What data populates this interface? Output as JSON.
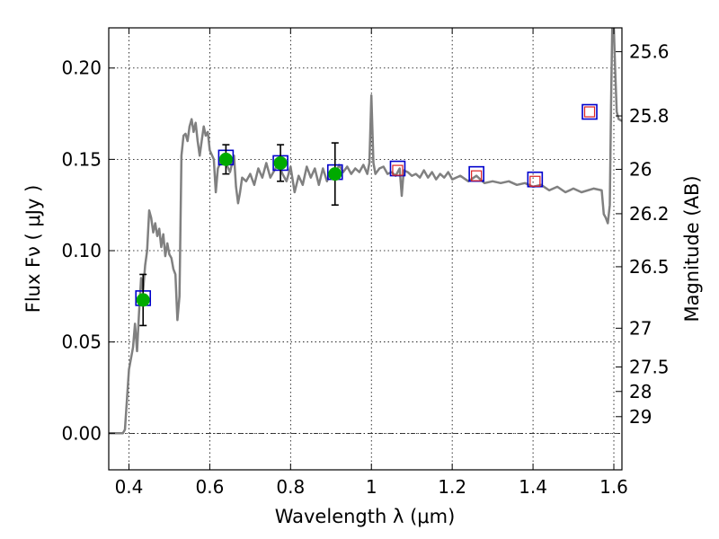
{
  "chart_data": {
    "type": "scatter",
    "title": "",
    "xlabel": "Wavelength  λ (μm)",
    "ylabel": "Flux  Fν  ( μJy )",
    "right_ylabel": "Magnitude (AB)",
    "xlim": [
      0.35,
      1.62
    ],
    "ylim": [
      -0.02,
      0.222
    ],
    "x_ticks": [
      {
        "v": 0.4,
        "label": "0.4"
      },
      {
        "v": 0.6,
        "label": "0.6"
      },
      {
        "v": 0.8,
        "label": "0.8"
      },
      {
        "v": 1.0,
        "label": "1"
      },
      {
        "v": 1.2,
        "label": "1.2"
      },
      {
        "v": 1.4,
        "label": "1.4"
      },
      {
        "v": 1.6,
        "label": "1.6"
      }
    ],
    "y_ticks": [
      {
        "v": 0.0,
        "label": "0.00"
      },
      {
        "v": 0.05,
        "label": "0.05"
      },
      {
        "v": 0.1,
        "label": "0.10"
      },
      {
        "v": 0.15,
        "label": "0.15"
      },
      {
        "v": 0.2,
        "label": "0.20"
      }
    ],
    "mag_ticks": [
      {
        "v": 25.6,
        "label": "25.6"
      },
      {
        "v": 25.8,
        "label": "25.8"
      },
      {
        "v": 26,
        "label": "26"
      },
      {
        "v": 26.2,
        "label": "26.2"
      },
      {
        "v": 26.5,
        "label": "26.5"
      },
      {
        "v": 27,
        "label": "27"
      },
      {
        "v": 27.5,
        "label": "27.5"
      },
      {
        "v": 28,
        "label": "28"
      },
      {
        "v": 29,
        "label": "29"
      }
    ],
    "grid": true,
    "zero_line": true,
    "colors": {
      "model": "#808080",
      "observed": "#00aa00",
      "model_band_outer": "#0000cc",
      "upper_limit_inner": "#dd2222",
      "errorbar": "#000000"
    },
    "series": [
      {
        "kind": "model_spectrum",
        "points": [
          [
            0.35,
            0.0
          ],
          [
            0.385,
            0.0
          ],
          [
            0.39,
            0.002
          ],
          [
            0.4,
            0.035
          ],
          [
            0.41,
            0.047
          ],
          [
            0.415,
            0.06
          ],
          [
            0.42,
            0.045
          ],
          [
            0.425,
            0.066
          ],
          [
            0.43,
            0.085
          ],
          [
            0.435,
            0.078
          ],
          [
            0.44,
            0.092
          ],
          [
            0.445,
            0.1
          ],
          [
            0.45,
            0.122
          ],
          [
            0.455,
            0.118
          ],
          [
            0.46,
            0.11
          ],
          [
            0.465,
            0.115
          ],
          [
            0.47,
            0.108
          ],
          [
            0.475,
            0.112
          ],
          [
            0.48,
            0.102
          ],
          [
            0.485,
            0.109
          ],
          [
            0.49,
            0.097
          ],
          [
            0.495,
            0.104
          ],
          [
            0.5,
            0.098
          ],
          [
            0.505,
            0.096
          ],
          [
            0.51,
            0.09
          ],
          [
            0.515,
            0.087
          ],
          [
            0.52,
            0.062
          ],
          [
            0.525,
            0.075
          ],
          [
            0.53,
            0.152
          ],
          [
            0.535,
            0.163
          ],
          [
            0.54,
            0.164
          ],
          [
            0.545,
            0.16
          ],
          [
            0.55,
            0.168
          ],
          [
            0.555,
            0.172
          ],
          [
            0.56,
            0.165
          ],
          [
            0.565,
            0.17
          ],
          [
            0.57,
            0.16
          ],
          [
            0.575,
            0.152
          ],
          [
            0.58,
            0.16
          ],
          [
            0.585,
            0.168
          ],
          [
            0.59,
            0.163
          ],
          [
            0.595,
            0.165
          ],
          [
            0.6,
            0.155
          ],
          [
            0.61,
            0.15
          ],
          [
            0.615,
            0.132
          ],
          [
            0.62,
            0.145
          ],
          [
            0.63,
            0.15
          ],
          [
            0.64,
            0.148
          ],
          [
            0.65,
            0.143
          ],
          [
            0.66,
            0.152
          ],
          [
            0.665,
            0.135
          ],
          [
            0.67,
            0.126
          ],
          [
            0.675,
            0.132
          ],
          [
            0.68,
            0.14
          ],
          [
            0.69,
            0.138
          ],
          [
            0.7,
            0.142
          ],
          [
            0.71,
            0.136
          ],
          [
            0.72,
            0.145
          ],
          [
            0.73,
            0.14
          ],
          [
            0.74,
            0.148
          ],
          [
            0.75,
            0.14
          ],
          [
            0.76,
            0.144
          ],
          [
            0.77,
            0.148
          ],
          [
            0.78,
            0.142
          ],
          [
            0.79,
            0.138
          ],
          [
            0.8,
            0.146
          ],
          [
            0.81,
            0.132
          ],
          [
            0.82,
            0.141
          ],
          [
            0.83,
            0.136
          ],
          [
            0.84,
            0.146
          ],
          [
            0.85,
            0.14
          ],
          [
            0.86,
            0.145
          ],
          [
            0.87,
            0.136
          ],
          [
            0.88,
            0.145
          ],
          [
            0.89,
            0.138
          ],
          [
            0.9,
            0.144
          ],
          [
            0.91,
            0.141
          ],
          [
            0.92,
            0.147
          ],
          [
            0.93,
            0.143
          ],
          [
            0.94,
            0.146
          ],
          [
            0.95,
            0.142
          ],
          [
            0.96,
            0.145
          ],
          [
            0.97,
            0.143
          ],
          [
            0.98,
            0.147
          ],
          [
            0.99,
            0.142
          ],
          [
            0.995,
            0.148
          ],
          [
            1.0,
            0.185
          ],
          [
            1.005,
            0.148
          ],
          [
            1.01,
            0.142
          ],
          [
            1.02,
            0.145
          ],
          [
            1.03,
            0.146
          ],
          [
            1.04,
            0.142
          ],
          [
            1.05,
            0.143
          ],
          [
            1.06,
            0.141
          ],
          [
            1.07,
            0.145
          ],
          [
            1.075,
            0.13
          ],
          [
            1.08,
            0.144
          ],
          [
            1.09,
            0.143
          ],
          [
            1.1,
            0.141
          ],
          [
            1.11,
            0.142
          ],
          [
            1.12,
            0.14
          ],
          [
            1.13,
            0.144
          ],
          [
            1.14,
            0.14
          ],
          [
            1.15,
            0.143
          ],
          [
            1.16,
            0.139
          ],
          [
            1.17,
            0.142
          ],
          [
            1.18,
            0.14
          ],
          [
            1.19,
            0.143
          ],
          [
            1.2,
            0.139
          ],
          [
            1.22,
            0.141
          ],
          [
            1.24,
            0.138
          ],
          [
            1.26,
            0.141
          ],
          [
            1.28,
            0.137
          ],
          [
            1.3,
            0.138
          ],
          [
            1.32,
            0.137
          ],
          [
            1.34,
            0.138
          ],
          [
            1.36,
            0.136
          ],
          [
            1.38,
            0.137
          ],
          [
            1.4,
            0.135
          ],
          [
            1.42,
            0.136
          ],
          [
            1.44,
            0.133
          ],
          [
            1.46,
            0.135
          ],
          [
            1.48,
            0.132
          ],
          [
            1.5,
            0.134
          ],
          [
            1.52,
            0.132
          ],
          [
            1.55,
            0.134
          ],
          [
            1.57,
            0.133
          ],
          [
            1.575,
            0.12
          ],
          [
            1.58,
            0.118
          ],
          [
            1.585,
            0.115
          ],
          [
            1.59,
            0.125
          ],
          [
            1.593,
            0.18
          ],
          [
            1.596,
            0.222
          ],
          [
            1.6,
            0.222
          ],
          [
            1.603,
            0.2
          ],
          [
            1.607,
            0.176
          ],
          [
            1.612,
            0.172
          ],
          [
            1.62,
            0.171
          ]
        ]
      },
      {
        "kind": "model_band_flux",
        "points": [
          [
            0.435,
            0.074
          ],
          [
            0.64,
            0.151
          ],
          [
            0.775,
            0.148
          ],
          [
            0.91,
            0.143
          ],
          [
            1.065,
            0.145
          ],
          [
            1.26,
            0.142
          ],
          [
            1.405,
            0.139
          ],
          [
            1.54,
            0.176
          ]
        ]
      },
      {
        "kind": "observed_flux",
        "points": [
          {
            "x": 0.435,
            "y": 0.073,
            "err": 0.014
          },
          {
            "x": 0.64,
            "y": 0.15,
            "err": 0.008
          },
          {
            "x": 0.775,
            "y": 0.148,
            "err": 0.01
          },
          {
            "x": 0.91,
            "y": 0.142,
            "err": 0.017
          }
        ]
      },
      {
        "kind": "open_red_squares",
        "points": [
          [
            1.065,
            0.144
          ],
          [
            1.26,
            0.141
          ],
          [
            1.405,
            0.138
          ],
          [
            1.54,
            0.176
          ]
        ]
      }
    ]
  }
}
